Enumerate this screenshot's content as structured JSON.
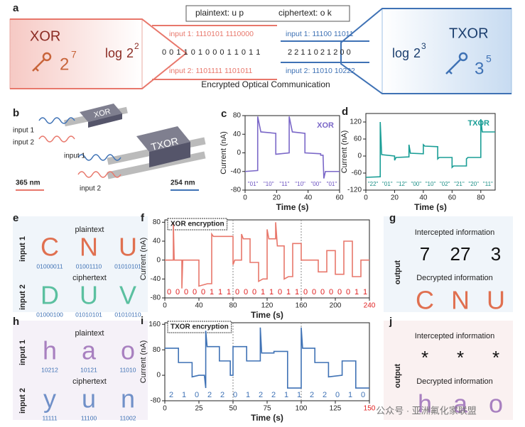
{
  "panel_a": {
    "letter": "a",
    "plaintext": "plaintext: u p",
    "ciphertext": "ciphertext: o k",
    "xor": "XOR",
    "xor_key": {
      "base": "2",
      "exp": "7"
    },
    "xor_log": {
      "log": "log",
      "base": "2",
      "exp": "2"
    },
    "xor_input1": "input 1: 1110101 1110000",
    "xor_result": "0 0 1 1 0 1 0  0 0 1 1 0 1 1",
    "xor_input2": "input 2: 1101111 1101011",
    "txor_input1": "input 1: 11100 11011",
    "txor_result": "2 2 1 1 0 2 1 2 0 0",
    "txor_input2": "input 2: 11010 10222",
    "txor_log": {
      "log": "log",
      "base": "2",
      "exp": "3"
    },
    "txor": "TXOR",
    "txor_key": {
      "base": "3",
      "exp": "5"
    },
    "caption": "Encrypted Optical Communication"
  },
  "panel_b": {
    "letter": "b",
    "input1": "input 1",
    "input2": "input 2",
    "device1": "XOR",
    "device2": "TXOR",
    "input1b": "input 1",
    "input2b": "input 2",
    "wl1": "365 nm",
    "wl2": "254 nm"
  },
  "panel_e": {
    "letter": "e",
    "row1": "input 1",
    "row2": "input 2",
    "plaintext_label": "plaintext",
    "ciphertext_label": "ciphertext",
    "plaintext": [
      {
        "char": "C",
        "code": "01000011"
      },
      {
        "char": "N",
        "code": "01001110"
      },
      {
        "char": "U",
        "code": "01010101"
      }
    ],
    "ciphertext": [
      {
        "char": "D",
        "code": "01000100"
      },
      {
        "char": "U",
        "code": "01010101"
      },
      {
        "char": "V",
        "code": "01010110"
      }
    ]
  },
  "panel_g": {
    "letter": "g",
    "side": "output",
    "intercepted_label": "Intercepted information",
    "intercepted": [
      "7",
      "27",
      "3"
    ],
    "decrypted_label": "Decrypted information",
    "decrypted": [
      "C",
      "N",
      "U"
    ]
  },
  "panel_h": {
    "letter": "h",
    "row1": "input 1",
    "row2": "input 2",
    "plaintext_label": "plaintext",
    "ciphertext_label": "ciphertext",
    "plaintext": [
      {
        "char": "h",
        "code": "10212"
      },
      {
        "char": "a",
        "code": "10121"
      },
      {
        "char": "o",
        "code": "11010"
      }
    ],
    "ciphertext": [
      {
        "char": "y",
        "code": "11111"
      },
      {
        "char": "u",
        "code": "11100"
      },
      {
        "char": "n",
        "code": "11002"
      }
    ]
  },
  "panel_j": {
    "letter": "j",
    "side": "output",
    "intercepted_label": "Intercepted information",
    "intercepted": [
      "*",
      "*",
      "*"
    ],
    "decrypted_label": "Decrypted information",
    "decrypted": [
      "h",
      "a",
      "o"
    ]
  },
  "watermark": "公众号 · 亚洲氟化家联盟",
  "chart_data": [
    {
      "type": "line",
      "letter": "c",
      "title": "XOR",
      "xlabel": "Time (s)",
      "ylabel": "Current (nA)",
      "color": "#7b68c8",
      "xlim": [
        0,
        60
      ],
      "xticks": [
        0,
        20,
        40,
        60
      ],
      "ylim": [
        -80,
        80
      ],
      "yticks": [
        -80,
        -40,
        0,
        40,
        80
      ],
      "x": [
        0,
        8,
        8,
        10,
        19.5,
        19.5,
        28,
        28,
        30,
        38,
        38,
        48,
        48,
        49.5,
        50,
        51,
        60
      ],
      "values": [
        -40,
        -38,
        78,
        45,
        42,
        -3,
        0,
        78,
        45,
        42,
        0,
        -2,
        -5,
        -5,
        -55,
        -40,
        -40
      ],
      "annotations": [
        "\"01\"",
        "\"10\"",
        "\"11\"",
        "\"10\"",
        "\"00\"",
        "\"01\""
      ]
    },
    {
      "type": "line",
      "letter": "d",
      "title": "TXOR",
      "xlabel": "Time (s)",
      "ylabel": "Current (nA)",
      "color": "#1a9e96",
      "xlim": [
        0,
        90
      ],
      "xticks": [
        0,
        20,
        40,
        60,
        80
      ],
      "ylim": [
        -120,
        150
      ],
      "yticks": [
        -120,
        -60,
        0,
        60,
        120
      ],
      "x": [
        0,
        10,
        10,
        11,
        20,
        20,
        21,
        30,
        30,
        31,
        40,
        40,
        41,
        50,
        50,
        51,
        60,
        60,
        61,
        70,
        70,
        71,
        80,
        80,
        81,
        90
      ],
      "values": [
        -75,
        -73,
        120,
        5,
        0,
        -15,
        -5,
        -3,
        40,
        10,
        8,
        40,
        35,
        33,
        -10,
        -5,
        -5,
        -40,
        -35,
        -35,
        -10,
        -5,
        -5,
        130,
        85,
        85
      ],
      "annotations": [
        "\"22\"",
        "\"01\"",
        "\"12\"",
        "\"00\"",
        "\"10\"",
        "\"02\"",
        "\"21\"",
        "\"20\"",
        "\"11\""
      ]
    },
    {
      "type": "line",
      "letter": "f",
      "title": "XOR encryption",
      "xlabel": "Time (s)",
      "ylabel": "Current (nA)",
      "color": "#e8776b",
      "xlim": [
        0,
        240
      ],
      "xticks": [
        0,
        40,
        80,
        120,
        160,
        200,
        240
      ],
      "ylim": [
        -80,
        85
      ],
      "yticks": [
        -80,
        -40,
        0,
        40,
        80
      ],
      "x": [
        0,
        10,
        10,
        11,
        20,
        20,
        21,
        40,
        40,
        50,
        55,
        55,
        57,
        80,
        80,
        82,
        90,
        90,
        92,
        100,
        100,
        110,
        110,
        115,
        120,
        120,
        122,
        130,
        130,
        132,
        140,
        140,
        145,
        150,
        150,
        160,
        160,
        180,
        180,
        190,
        190,
        200,
        200,
        210,
        210,
        220,
        220,
        230,
        230,
        240
      ],
      "values": [
        0,
        0,
        80,
        0,
        0,
        -60,
        0,
        0,
        -55,
        -50,
        -50,
        55,
        50,
        50,
        -10,
        0,
        0,
        55,
        45,
        45,
        -5,
        -5,
        -45,
        -40,
        -40,
        65,
        45,
        45,
        80,
        30,
        30,
        -40,
        -35,
        -35,
        35,
        35,
        0,
        0,
        -25,
        -25,
        20,
        20,
        -30,
        -30,
        40,
        40,
        -35,
        -35,
        0,
        0
      ],
      "annotations": [
        "0",
        "0",
        "0",
        "0",
        "0",
        "1",
        "1",
        "1",
        "0",
        "0",
        "0",
        "1",
        "1",
        "0",
        "1",
        "1",
        "0",
        "0",
        "0",
        "0",
        "0",
        "0",
        "1",
        "1"
      ]
    },
    {
      "type": "line",
      "letter": "i",
      "title": "TXOR encryption",
      "xlabel": "Time (s)",
      "ylabel": "Current (nA)",
      "color": "#3f72b5",
      "xlim": [
        0,
        150
      ],
      "xticks": [
        0,
        25,
        50,
        75,
        100,
        125,
        150
      ],
      "ylim": [
        -80,
        165
      ],
      "yticks": [
        -80,
        0,
        80,
        160
      ],
      "x": [
        0,
        10,
        10,
        20,
        20,
        25,
        29,
        30,
        30,
        31,
        40,
        40,
        48,
        48,
        50,
        50,
        60,
        60,
        70,
        70,
        71,
        80,
        80,
        90,
        90,
        100,
        100,
        101,
        110,
        110,
        120,
        120,
        130,
        130,
        140,
        140,
        150
      ],
      "values": [
        85,
        85,
        40,
        40,
        -5,
        0,
        0,
        -40,
        140,
        90,
        90,
        45,
        45,
        0,
        0,
        90,
        90,
        45,
        45,
        150,
        70,
        70,
        75,
        75,
        -40,
        -40,
        150,
        85,
        85,
        40,
        40,
        -5,
        0,
        45,
        45,
        -40,
        -40
      ],
      "annotations": [
        "2",
        "1",
        "0",
        "2",
        "2",
        "0",
        "1",
        "2",
        "2",
        "1",
        "1",
        "2",
        "2",
        "0",
        "1",
        "0"
      ]
    }
  ]
}
